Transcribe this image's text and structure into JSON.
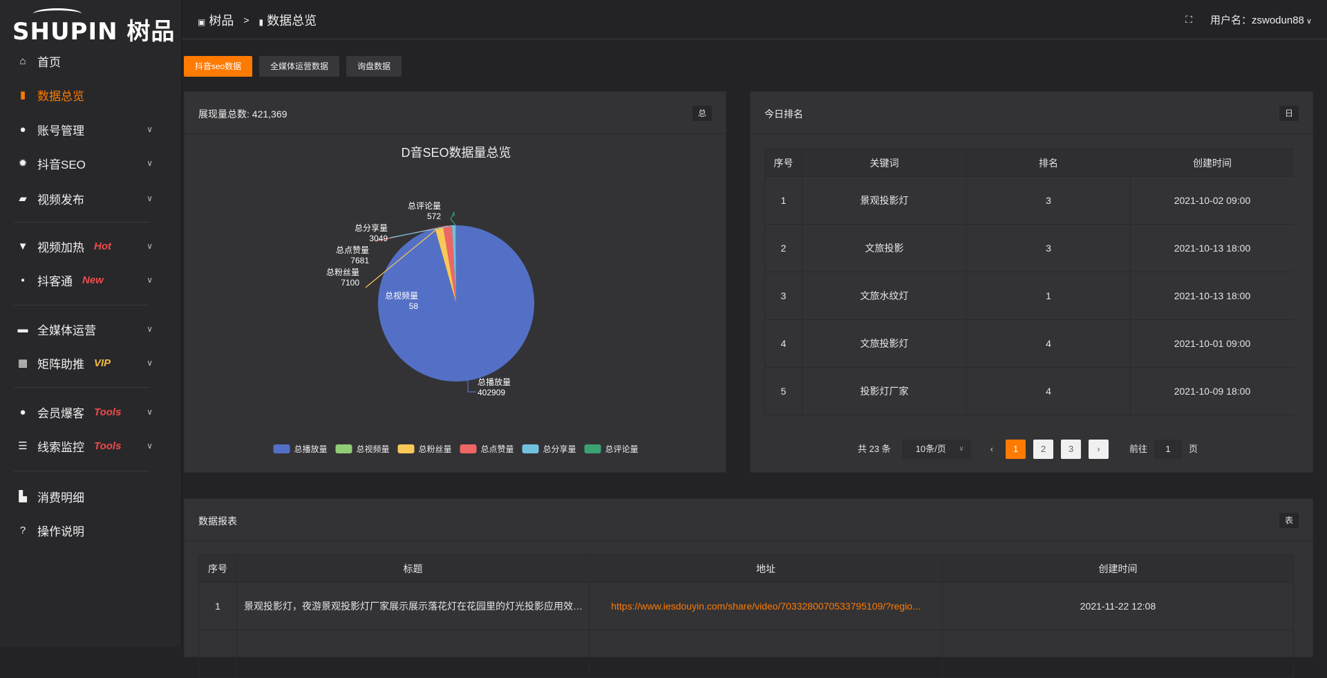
{
  "brand": {
    "logo_text": "SHUPIN 树品"
  },
  "sidebar": {
    "items": [
      {
        "label": "首页",
        "icon": "home-icon",
        "glyph": "⌂"
      },
      {
        "label": "数据总览",
        "icon": "bar-chart-icon",
        "glyph": "▮",
        "active": true
      },
      {
        "label": "账号管理",
        "icon": "user-icon",
        "glyph": "●",
        "chevron": true
      },
      {
        "label": "抖音SEO",
        "icon": "gear-icon",
        "glyph": "✹",
        "chevron": true
      },
      {
        "label": "视频发布",
        "icon": "camera-icon",
        "glyph": "▰",
        "chevron": true
      },
      {
        "label": "视频加热",
        "icon": "signboard-icon",
        "glyph": "▼",
        "chevron": true,
        "badge": "Hot",
        "badge_color": "#f04a4a"
      },
      {
        "label": "抖客通",
        "icon": "chat-icon",
        "glyph": "▪",
        "chevron": true,
        "badge": "New",
        "badge_color": "#f04a4a"
      },
      {
        "label": "全媒体运营",
        "icon": "monitor-icon",
        "glyph": "▬",
        "chevron": true
      },
      {
        "label": "矩阵助推",
        "icon": "grid-icon",
        "glyph": "▦",
        "chevron": true,
        "badge": "VIP",
        "badge_color": "#f5b942"
      },
      {
        "label": "会员爆客",
        "icon": "user-icon",
        "glyph": "●",
        "chevron": true,
        "badge": "Tools",
        "badge_color": "#f04a4a"
      },
      {
        "label": "线索监控",
        "icon": "sliders-icon",
        "glyph": "☰",
        "chevron": true,
        "badge": "Tools",
        "badge_color": "#f04a4a"
      },
      {
        "label": "消费明细",
        "icon": "wallet-icon",
        "glyph": "▙"
      },
      {
        "label": "操作说明",
        "icon": "help-icon",
        "glyph": "?"
      }
    ]
  },
  "header": {
    "breadcrumb": [
      "树品",
      ">",
      "数据总览"
    ],
    "user_label": "用户名：zswodun88",
    "fullscreen_icon": "fullscreen-icon"
  },
  "tabs": [
    {
      "label": "抖音seo数据",
      "active": true
    },
    {
      "label": "全媒体运营数据"
    },
    {
      "label": "询盘数据"
    }
  ],
  "overview_panel": {
    "title": "展现量总数: 421,369",
    "tag": "总"
  },
  "ranking_panel": {
    "title": "今日排名",
    "tag": "日",
    "columns": [
      "序号",
      "关键词",
      "排名",
      "创建时间"
    ],
    "rows": [
      [
        "1",
        "景观投影灯",
        "3",
        "2021-10-02 09:00"
      ],
      [
        "2",
        "文旅投影",
        "3",
        "2021-10-13 18:00"
      ],
      [
        "3",
        "文旅水纹灯",
        "1",
        "2021-10-13 18:00"
      ],
      [
        "4",
        "文旅投影灯",
        "4",
        "2021-10-01 09:00"
      ],
      [
        "5",
        "投影灯厂家",
        "4",
        "2021-10-09 18:00"
      ]
    ],
    "pagination": {
      "total": "共 23 条",
      "page_size": "10条/页",
      "pages": [
        "1",
        "2",
        "3"
      ],
      "current": "1",
      "goto_label": "前往",
      "goto_value": "1",
      "page_suffix": "页"
    }
  },
  "report_panel": {
    "title": "数据报表",
    "tag": "表",
    "columns": [
      "序号",
      "标题",
      "地址",
      "创建时间"
    ],
    "rows": [
      [
        "1",
        "景观投影灯，夜游景观投影灯厂家展示展示落花灯在花园里的灯光投影应用效果 #",
        "https://www.iesdouyin.com/share/video/7033280070533795109/?regio...",
        "2021-11-22 12:08"
      ]
    ]
  },
  "chart_data": {
    "type": "pie",
    "title": "D音SEO数据量总览",
    "categories": [
      "总播放量",
      "总视频量",
      "总粉丝量",
      "总点赞量",
      "总分享量",
      "总评论量"
    ],
    "values": [
      402909,
      58,
      7100,
      7681,
      3049,
      572
    ],
    "colors": [
      "#5470c6",
      "#91cc75",
      "#fac858",
      "#ee6666",
      "#73c0de",
      "#3ba272"
    ],
    "legend": "bottom"
  }
}
